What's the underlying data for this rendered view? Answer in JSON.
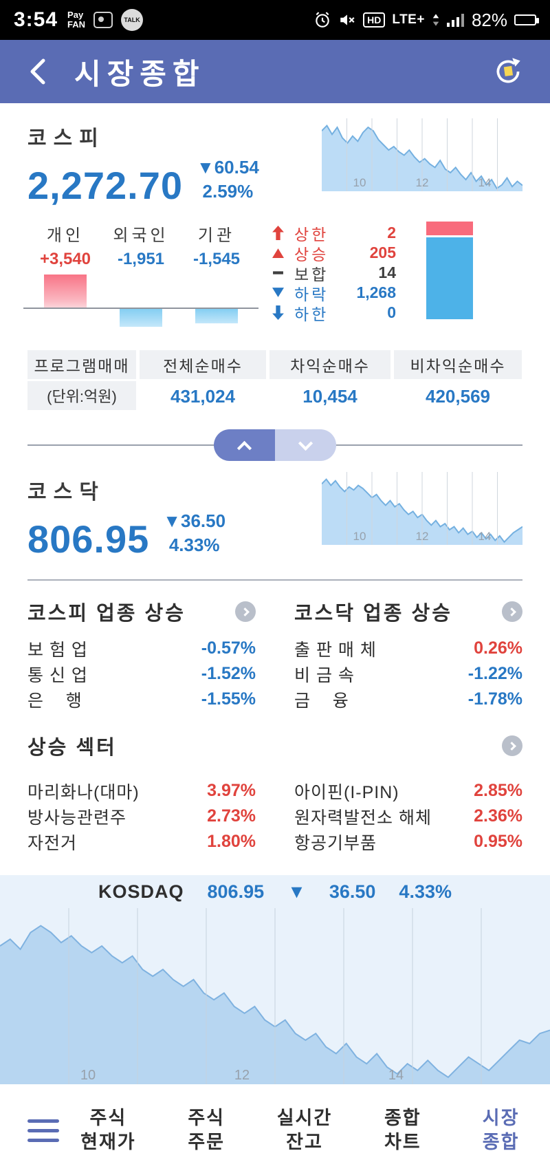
{
  "colors": {
    "header_blue": "#5a6cb4",
    "accent_blue": "#2878c4",
    "accent_red": "#e0433d"
  },
  "status_bar": {
    "time": "3:54",
    "pay_line1": "Pay",
    "pay_line2": "FAN",
    "talk_label": "TALK",
    "hd_label": "HD",
    "network_label": "LTE+",
    "battery_pct": "82%"
  },
  "header": {
    "title": "시장종합"
  },
  "kospi": {
    "label": "코스피",
    "value": "2,272.70",
    "change": "▼60.54",
    "change_pct": "2.59%"
  },
  "investors": {
    "items": [
      {
        "label": "개인",
        "value": "+3,540",
        "direction": "up"
      },
      {
        "label": "외국인",
        "value": "-1,951",
        "direction": "down"
      },
      {
        "label": "기관",
        "value": "-1,545",
        "direction": "down"
      }
    ]
  },
  "updown": {
    "items": [
      {
        "icon": "limit-up-arrow",
        "label": "상한",
        "value": "2",
        "tone": "red"
      },
      {
        "icon": "rise-triangle",
        "label": "상승",
        "value": "205",
        "tone": "red"
      },
      {
        "icon": "flat-dash",
        "label": "보합",
        "value": "14",
        "tone": "dark"
      },
      {
        "icon": "fall-triangle",
        "label": "하락",
        "value": "1,268",
        "tone": "blue"
      },
      {
        "icon": "limit-down-arrow",
        "label": "하한",
        "value": "0",
        "tone": "blue"
      }
    ]
  },
  "program_trading": {
    "title": "프로그램매매",
    "unit": "(단위:억원)",
    "columns": [
      "전체순매수",
      "차익순매수",
      "비차익순매수"
    ],
    "values": [
      "431,024",
      "10,454",
      "420,569"
    ]
  },
  "kosdaq": {
    "label": "코스닥",
    "value": "806.95",
    "change": "▼36.50",
    "change_pct": "4.33%"
  },
  "sector_up": {
    "kospi_title": "코스피 업종 상승",
    "kosdaq_title": "코스닥 업종 상승",
    "kospi_rows": [
      {
        "name": "보 험 업",
        "value": "-0.57%",
        "tone": "blue"
      },
      {
        "name": "통 신 업",
        "value": "-1.52%",
        "tone": "blue"
      },
      {
        "name": "은    행",
        "value": "-1.55%",
        "tone": "blue"
      }
    ],
    "kosdaq_rows": [
      {
        "name": "출 판 매 체",
        "value": "0.26%",
        "tone": "red"
      },
      {
        "name": "비 금 속",
        "value": "-1.22%",
        "tone": "blue"
      },
      {
        "name": "금    융",
        "value": "-1.78%",
        "tone": "blue"
      }
    ]
  },
  "rising_sector": {
    "title": "상승 섹터",
    "left_rows": [
      {
        "name": "마리화나(대마)",
        "value": "3.97%",
        "tone": "red"
      },
      {
        "name": "방사능관련주",
        "value": "2.73%",
        "tone": "red"
      },
      {
        "name": "자전거",
        "value": "1.80%",
        "tone": "red"
      }
    ],
    "right_rows": [
      {
        "name": "아이핀(I-PIN)",
        "value": "2.85%",
        "tone": "red"
      },
      {
        "name": "원자력발전소 해체",
        "value": "2.36%",
        "tone": "red"
      },
      {
        "name": "항공기부품",
        "value": "0.95%",
        "tone": "red"
      }
    ]
  },
  "bottom_chart": {
    "name": "KOSDAQ",
    "value": "806.95",
    "arrow": "▼",
    "change": "36.50",
    "change_pct": "4.33%"
  },
  "nav": {
    "items": [
      {
        "line1": "주식",
        "line2": "현재가",
        "active": false
      },
      {
        "line1": "주식",
        "line2": "주문",
        "active": false
      },
      {
        "line1": "실시간",
        "line2": "잔고",
        "active": false
      },
      {
        "line1": "종합",
        "line2": "차트",
        "active": false
      },
      {
        "line1": "시장",
        "line2": "종합",
        "active": true
      }
    ]
  },
  "chart_data": [
    {
      "id": "kospi_spark",
      "type": "area",
      "name": "코스피 intraday",
      "ylim": [
        2268,
        2310
      ],
      "x_ticks": [
        {
          "label": "10",
          "pos": 0.19
        },
        {
          "label": "12",
          "pos": 0.5
        },
        {
          "label": "14",
          "pos": 0.81
        }
      ],
      "fill": "#bcdcf6",
      "stroke": "#74b0e0",
      "grid": "#cfd6dd",
      "tick_size": 17,
      "values": [
        2304,
        2307,
        2302,
        2306,
        2300,
        2297,
        2301,
        2298,
        2303,
        2306,
        2304,
        2299,
        2296,
        2293,
        2295,
        2292,
        2290,
        2293,
        2289,
        2286,
        2288,
        2285,
        2283,
        2287,
        2282,
        2280,
        2283,
        2279,
        2276,
        2280,
        2275,
        2278,
        2273,
        2276,
        2271,
        2273,
        2277,
        2272,
        2275,
        2272.7
      ]
    },
    {
      "id": "kosdaq_spark",
      "type": "area",
      "name": "코스닥 intraday",
      "ylim": [
        795,
        840
      ],
      "x_ticks": [
        {
          "label": "10",
          "pos": 0.19
        },
        {
          "label": "12",
          "pos": 0.5
        },
        {
          "label": "14",
          "pos": 0.81
        }
      ],
      "fill": "#bcdcf6",
      "stroke": "#74b0e0",
      "grid": "#cfd6dd",
      "tick_size": 17,
      "values": [
        835,
        838,
        834,
        837,
        833,
        830,
        833,
        831,
        834,
        832,
        829,
        826,
        828,
        824,
        821,
        824,
        820,
        822,
        818,
        815,
        817,
        813,
        815,
        811,
        808,
        811,
        807,
        809,
        805,
        807,
        803,
        806,
        802,
        804,
        800,
        803,
        799,
        802,
        798,
        801,
        797,
        800,
        803,
        805,
        806.95
      ]
    },
    {
      "id": "kosdaq_main",
      "type": "area",
      "name": "KOSDAQ intraday",
      "ylim": [
        790,
        840
      ],
      "x_ticks": [
        {
          "label": "10",
          "pos": 0.16
        },
        {
          "label": "12",
          "pos": 0.44
        },
        {
          "label": "14",
          "pos": 0.72
        }
      ],
      "fill": "#b7d6f1",
      "stroke": "#7fb2e0",
      "grid": "#c5d2de",
      "tick_size": 20,
      "values": [
        832,
        834,
        831,
        836,
        838,
        836,
        833,
        835,
        832,
        830,
        832,
        829,
        827,
        829,
        825,
        823,
        825,
        822,
        820,
        822,
        818,
        816,
        818,
        814,
        812,
        814,
        810,
        808,
        810,
        806,
        804,
        806,
        802,
        800,
        803,
        799,
        797,
        800,
        796,
        794,
        797,
        795,
        798,
        795,
        793,
        796,
        799,
        797,
        795,
        798,
        801,
        804,
        803,
        806,
        806.95
      ]
    }
  ]
}
